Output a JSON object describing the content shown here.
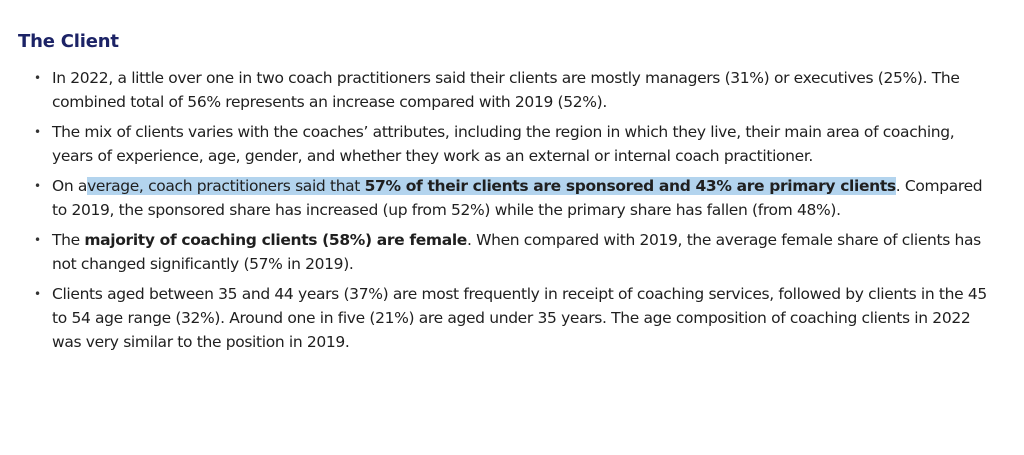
{
  "heading": "The Client",
  "bullet_symbol": "•",
  "colors": {
    "heading": "#1c2366",
    "highlight": "#b3d4ee"
  },
  "bullets": [
    {
      "text": "In 2022, a little over one in two coach practitioners said their clients are mostly managers (31%) or executives (25%). The combined total of 56% represents an increase compared with 2019 (52%)."
    },
    {
      "text": "The mix of clients varies with the coaches’ attributes, including the region in which they live, their main area of coaching, years of experience, age, gender, and whether they work as an external or internal coach practitioner."
    },
    {
      "pre_highlight": "On a",
      "highlight_text": "verage, coach practitioners said that ",
      "highlight_bold": "57% of their clients are sponsored and 43% are primary clients",
      "rest": ". Compared to 2019, the sponsored share has increased (up from 52%) while the primary share has fallen (from 48%)."
    },
    {
      "pre": "The ",
      "bold": "majority of coaching clients (58%) are female",
      "rest": ". When compared with 2019, the average female share of clients has not changed significantly (57% in 2019)."
    },
    {
      "text": "Clients aged between 35 and 44 years (37%) are most frequently in receipt of coaching services, followed by clients in the 45 to 54 age range (32%). Around one in five (21%) are aged under 35 years. The age composition of coaching clients in 2022 was very similar to the position in 2019."
    }
  ]
}
